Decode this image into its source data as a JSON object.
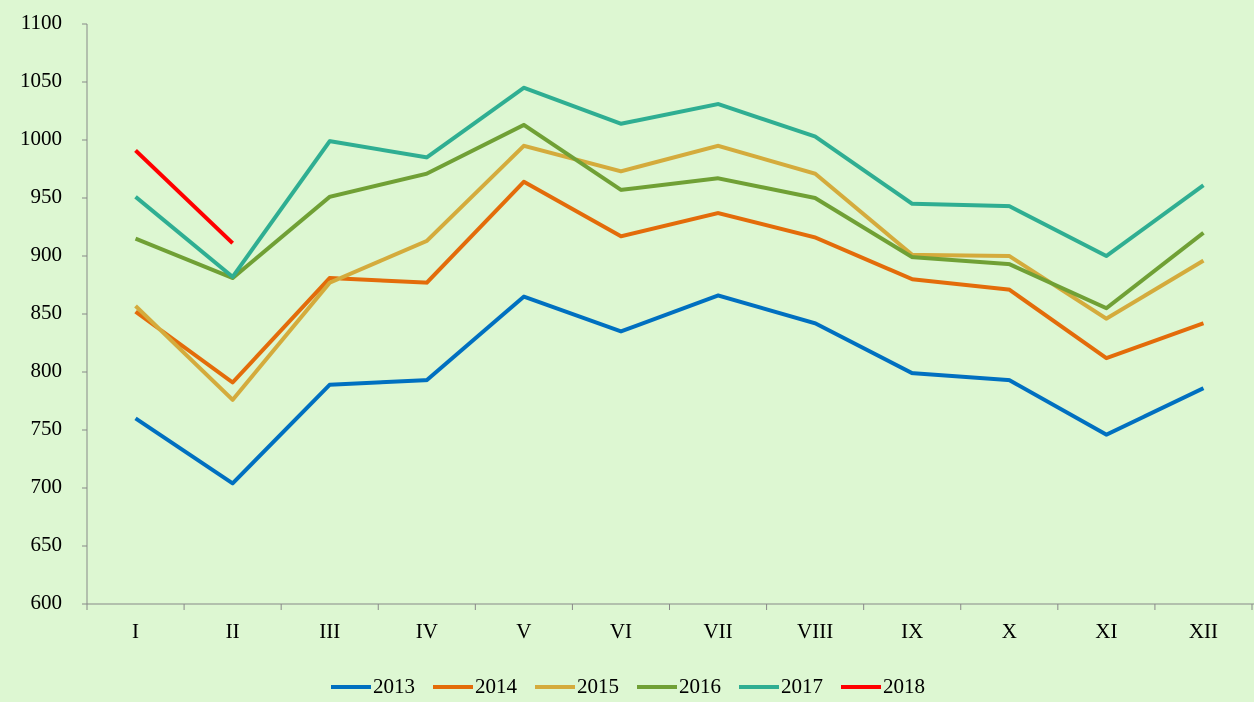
{
  "chart_data": {
    "type": "line",
    "categories": [
      "I",
      "II",
      "III",
      "IV",
      "V",
      "VI",
      "VII",
      "VIII",
      "IX",
      "X",
      "XI",
      "XII"
    ],
    "series": [
      {
        "name": "2013",
        "color": "#0070c0",
        "values": [
          760,
          704,
          789,
          793,
          865,
          835,
          866,
          842,
          799,
          793,
          746,
          786
        ]
      },
      {
        "name": "2014",
        "color": "#e36c0a",
        "values": [
          852,
          791,
          881,
          877,
          964,
          917,
          937,
          916,
          880,
          871,
          812,
          842
        ]
      },
      {
        "name": "2015",
        "color": "#d4ab3c",
        "values": [
          857,
          776,
          877,
          913,
          995,
          973,
          995,
          971,
          901,
          900,
          846,
          896
        ]
      },
      {
        "name": "2016",
        "color": "#70a035",
        "values": [
          915,
          881,
          951,
          971,
          1013,
          957,
          967,
          950,
          899,
          893,
          855,
          920
        ]
      },
      {
        "name": "2017",
        "color": "#2fae92",
        "values": [
          951,
          882,
          999,
          985,
          1045,
          1014,
          1031,
          1003,
          945,
          943,
          900,
          961
        ]
      },
      {
        "name": "2018",
        "color": "#ff0000",
        "values": [
          991,
          911,
          null,
          null,
          null,
          null,
          null,
          null,
          null,
          null,
          null,
          null
        ]
      }
    ],
    "ylim": [
      600,
      1100
    ],
    "yticks": [
      600,
      650,
      700,
      750,
      800,
      850,
      900,
      950,
      1000,
      1050,
      1100
    ],
    "grid": false,
    "legend": "bottom"
  }
}
